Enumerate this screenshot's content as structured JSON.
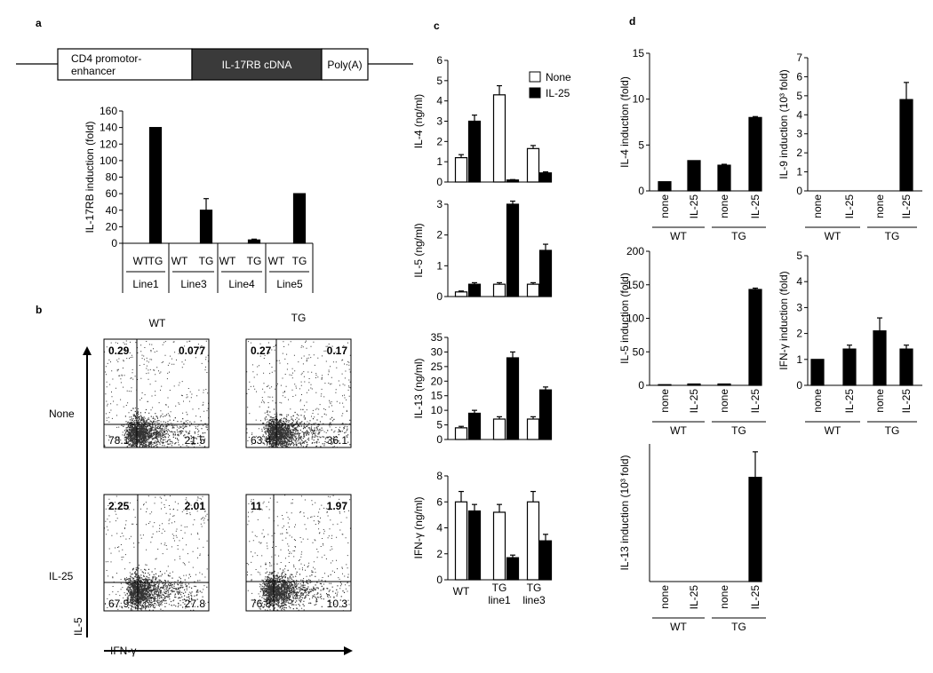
{
  "panels": {
    "a": "a",
    "b": "b",
    "c": "c",
    "d": "d"
  },
  "construct": {
    "promoter": "CD4 promotor-enhancer",
    "promoter_lines": [
      "CD4 promotor-",
      "enhancer"
    ],
    "cdna": "IL-17RB cDNA",
    "polya": "Poly(A)"
  },
  "flow": {
    "col_labels": [
      "WT",
      "TG"
    ],
    "row_labels": [
      "None",
      "IL-25"
    ],
    "x_axis": "IFN-γ",
    "y_axis": "IL-5",
    "quadrants": [
      [
        "0.29",
        "0.077",
        "78.1",
        "21.5"
      ],
      [
        "0.27",
        "0.17",
        "63.4",
        "36.1"
      ],
      [
        "2.25",
        "2.01",
        "67.9",
        "27.8"
      ],
      [
        "11",
        "1.97",
        "76.8",
        "10.3"
      ]
    ]
  },
  "chart_data": [
    {
      "id": "a-il17rb",
      "type": "bar",
      "categories": [
        "WT",
        "TG",
        "WT",
        "TG",
        "WT",
        "TG",
        "WT",
        "TG"
      ],
      "groups": [
        "Line1",
        "Line3",
        "Line4",
        "Line5"
      ],
      "series": [
        {
          "values": [
            0,
            140,
            0,
            40,
            0,
            4,
            0,
            60
          ],
          "errors": [
            0,
            0,
            0,
            14,
            0,
            1,
            0,
            0
          ],
          "color": "#000000"
        }
      ],
      "ylabel": "IL-17RB induction (fold)",
      "ylim": [
        0,
        160
      ],
      "yticks": [
        "0",
        "20",
        "40",
        "60",
        "80",
        "100",
        "120",
        "140",
        "160"
      ]
    },
    {
      "id": "c-il4",
      "type": "bar",
      "categories": [
        "WT",
        "TG line1",
        "TG line3"
      ],
      "series": [
        {
          "name": "None",
          "values": [
            1.2,
            4.3,
            1.65
          ],
          "errors": [
            0.15,
            0.45,
            0.15
          ],
          "color": "#ffffff"
        },
        {
          "name": "IL-25",
          "values": [
            3.0,
            0.1,
            0.45
          ],
          "errors": [
            0.3,
            0.02,
            0.05
          ],
          "color": "#000000"
        }
      ],
      "ylabel": "IL-4 (ng/ml)",
      "ylim": [
        0,
        6
      ],
      "yticks": [
        "0",
        "1",
        "2",
        "3",
        "4",
        "5",
        "6"
      ]
    },
    {
      "id": "c-il5",
      "type": "bar",
      "categories": [
        "WT",
        "TG line1",
        "TG line3"
      ],
      "series": [
        {
          "name": "None",
          "values": [
            0.15,
            0.4,
            0.4
          ],
          "errors": [
            0.03,
            0.05,
            0.05
          ],
          "color": "#ffffff"
        },
        {
          "name": "IL-25",
          "values": [
            0.4,
            3.0,
            1.5
          ],
          "errors": [
            0.05,
            0.1,
            0.2
          ],
          "color": "#000000"
        }
      ],
      "ylabel": "IL-5 (ng/ml)",
      "ylim": [
        0,
        3
      ],
      "yticks": [
        "0",
        "1",
        "2",
        "3"
      ]
    },
    {
      "id": "c-il13",
      "type": "bar",
      "categories": [
        "WT",
        "TG line1",
        "TG line3"
      ],
      "series": [
        {
          "name": "None",
          "values": [
            4,
            7,
            7
          ],
          "errors": [
            0.5,
            0.8,
            0.8
          ],
          "color": "#ffffff"
        },
        {
          "name": "IL-25",
          "values": [
            9,
            28,
            17
          ],
          "errors": [
            1,
            2,
            1
          ],
          "color": "#000000"
        }
      ],
      "ylabel": "IL-13 (ng/ml)",
      "ylim": [
        0,
        35
      ],
      "yticks": [
        "0",
        "5",
        "10",
        "15",
        "20",
        "25",
        "30",
        "35"
      ]
    },
    {
      "id": "c-ifng",
      "type": "bar",
      "categories": [
        "WT",
        "TG line1",
        "TG line3"
      ],
      "series": [
        {
          "name": "None",
          "values": [
            6,
            5.2,
            6
          ],
          "errors": [
            0.8,
            0.6,
            0.8
          ],
          "color": "#ffffff"
        },
        {
          "name": "IL-25",
          "values": [
            5.3,
            1.7,
            3.0
          ],
          "errors": [
            0.5,
            0.2,
            0.5
          ],
          "color": "#000000"
        }
      ],
      "ylabel": "IFN-γ (ng/ml)",
      "ylim": [
        0,
        8
      ],
      "yticks": [
        "0",
        "2",
        "4",
        "6",
        "8"
      ]
    },
    {
      "id": "d-il4",
      "type": "bar",
      "categories": [
        "none",
        "IL-25",
        "none",
        "IL-25"
      ],
      "groups": [
        "WT",
        "TG"
      ],
      "series": [
        {
          "values": [
            1,
            3.3,
            2.8,
            8
          ],
          "errors": [
            0,
            0,
            0.1,
            0.1
          ],
          "color": "#000000"
        }
      ],
      "ylabel": "IL-4 induction (fold)",
      "ylim": [
        0,
        15
      ],
      "yticks": [
        "0",
        "5",
        "10",
        "15"
      ]
    },
    {
      "id": "d-il9",
      "type": "bar",
      "categories": [
        "none",
        "IL-25",
        "none",
        "IL-25"
      ],
      "groups": [
        "WT",
        "TG"
      ],
      "series": [
        {
          "values": [
            0,
            0,
            0,
            4.8
          ],
          "errors": [
            0,
            0,
            0,
            0.9
          ],
          "color": "#000000"
        }
      ],
      "ylabel": "IL-9 induction (10³ fold)",
      "ylim": [
        0,
        7
      ],
      "yticks": [
        "0",
        "1",
        "2",
        "3",
        "4",
        "5",
        "6",
        "7"
      ]
    },
    {
      "id": "d-il5",
      "type": "bar",
      "categories": [
        "none",
        "IL-25",
        "none",
        "IL-25"
      ],
      "groups": [
        "WT",
        "TG"
      ],
      "series": [
        {
          "values": [
            1,
            2,
            2,
            143
          ],
          "errors": [
            0,
            0,
            0,
            2
          ],
          "color": "#000000"
        }
      ],
      "ylabel": "IL-5 induction (fold)",
      "ylim": [
        0,
        200
      ],
      "yticks": [
        "0",
        "50",
        "100",
        "150",
        "200"
      ]
    },
    {
      "id": "d-ifng",
      "type": "bar",
      "categories": [
        "none",
        "IL-25",
        "none",
        "IL-25"
      ],
      "groups": [
        "WT",
        "TG"
      ],
      "series": [
        {
          "values": [
            1,
            1.4,
            2.1,
            1.4
          ],
          "errors": [
            0,
            0.15,
            0.5,
            0.15
          ],
          "color": "#000000"
        }
      ],
      "ylabel": "IFN-γ induction (fold)",
      "ylim": [
        0,
        5
      ],
      "yticks": [
        "0",
        "1",
        "2",
        "3",
        "4",
        "5"
      ]
    },
    {
      "id": "d-il13",
      "type": "bar",
      "categories": [
        "none",
        "IL-25",
        "none",
        "IL-25"
      ],
      "groups": [
        "WT",
        "TG"
      ],
      "series": [
        {
          "values": [
            0,
            0,
            0,
            5.3
          ],
          "errors": [
            0,
            0,
            0,
            1.3
          ],
          "color": "#000000"
        }
      ],
      "ylabel": "IL-13 induction (10³ fold)",
      "ylim": [
        0,
        7
      ],
      "yticks": []
    }
  ]
}
